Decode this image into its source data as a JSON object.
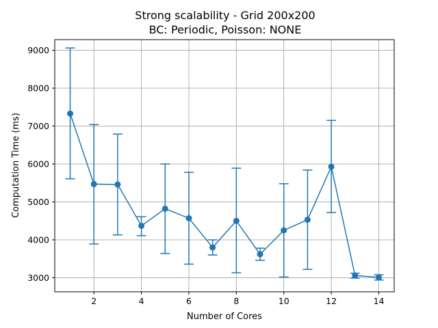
{
  "chart_data": {
    "type": "line",
    "title_line1": "Strong scalability - Grid 200x200",
    "title_line2": "BC: Periodic, Poisson: NONE",
    "xlabel": "Number of Cores",
    "ylabel": "Computation Time (ms)",
    "xlim": [
      0.35,
      14.65
    ],
    "ylim": [
      2630,
      9280
    ],
    "xticks": [
      2,
      4,
      6,
      8,
      10,
      12,
      14
    ],
    "yticks": [
      3000,
      4000,
      5000,
      6000,
      7000,
      8000,
      9000
    ],
    "grid": true,
    "color": "#1f77b4",
    "series": [
      {
        "x": [
          1,
          2,
          3,
          4,
          5,
          6,
          7,
          8,
          9,
          10,
          11,
          12,
          13,
          14
        ],
        "y": [
          7330,
          5470,
          5460,
          4370,
          4820,
          4570,
          3800,
          4500,
          3620,
          4250,
          4530,
          5930,
          3060,
          3010
        ],
        "err_low": [
          5610,
          3890,
          4130,
          4110,
          3640,
          3360,
          3600,
          3130,
          3460,
          3020,
          3220,
          4720,
          2990,
          2940
        ],
        "err_high": [
          9060,
          7040,
          6790,
          4610,
          6000,
          5780,
          4000,
          5890,
          3780,
          5480,
          5840,
          7150,
          3120,
          3080
        ]
      }
    ]
  }
}
